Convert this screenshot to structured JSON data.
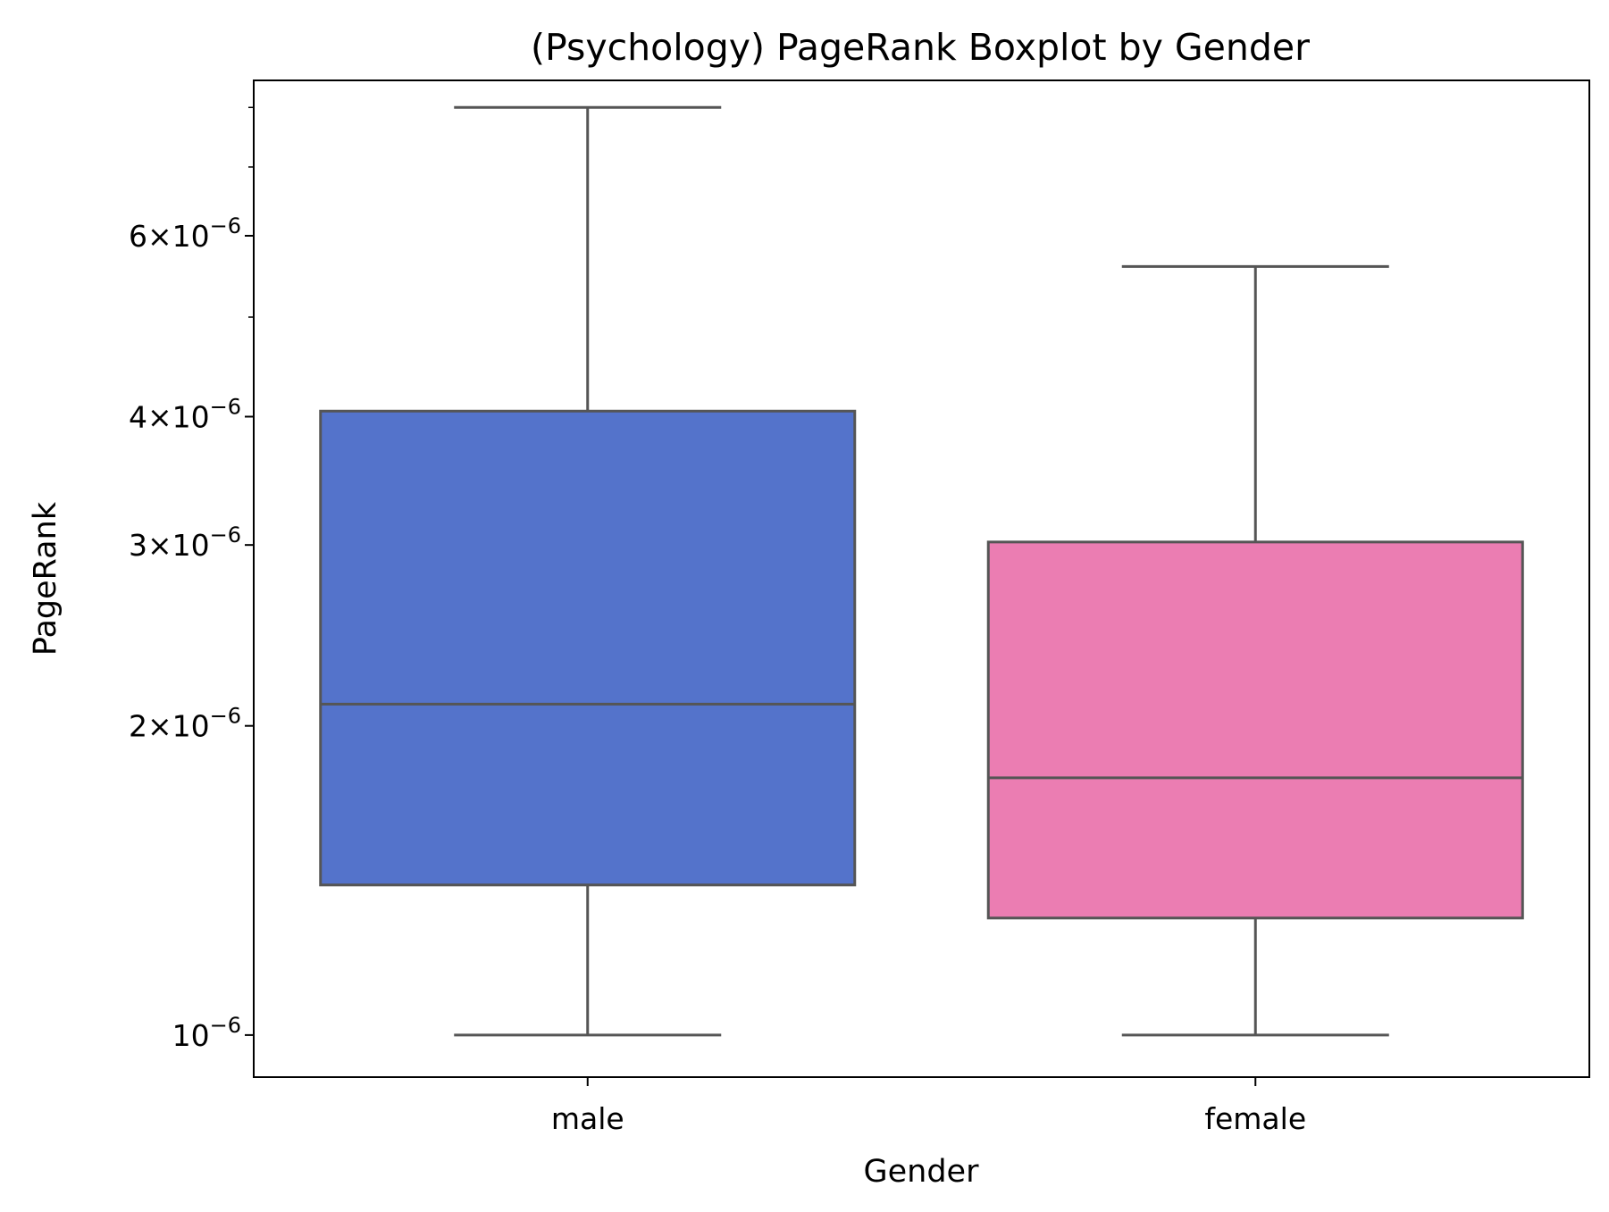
{
  "chart_data": {
    "type": "boxplot",
    "title": "(Psychology) PageRank Boxplot by Gender",
    "xlabel": "Gender",
    "ylabel": "PageRank",
    "y_scale": "log",
    "ylim": [
      9.1e-07,
      8.5e-06
    ],
    "categories": [
      "male",
      "female"
    ],
    "y_ticks": [
      {
        "value": 1e-06,
        "mantissa": "",
        "exponent": "−6"
      },
      {
        "value": 2e-06,
        "mantissa": "2",
        "exponent": "−6"
      },
      {
        "value": 3e-06,
        "mantissa": "3",
        "exponent": "−6"
      },
      {
        "value": 4e-06,
        "mantissa": "4",
        "exponent": "−6"
      },
      {
        "value": 6e-06,
        "mantissa": "6",
        "exponent": "−6"
      }
    ],
    "y_minor_ticks": [
      5e-06,
      7e-06,
      8e-06
    ],
    "boxes": [
      {
        "category": "male",
        "color": "#5473cb",
        "whisker_low": 1e-06,
        "q1": 1.4e-06,
        "median": 2.1e-06,
        "q3": 4.05e-06,
        "whisker_high": 8e-06
      },
      {
        "category": "female",
        "color": "#eb7db2",
        "whisker_low": 1e-06,
        "q1": 1.3e-06,
        "median": 1.78e-06,
        "q3": 3.02e-06,
        "whisker_high": 5.6e-06
      }
    ],
    "line_color": "#555555",
    "grid": false,
    "legend": "none"
  }
}
